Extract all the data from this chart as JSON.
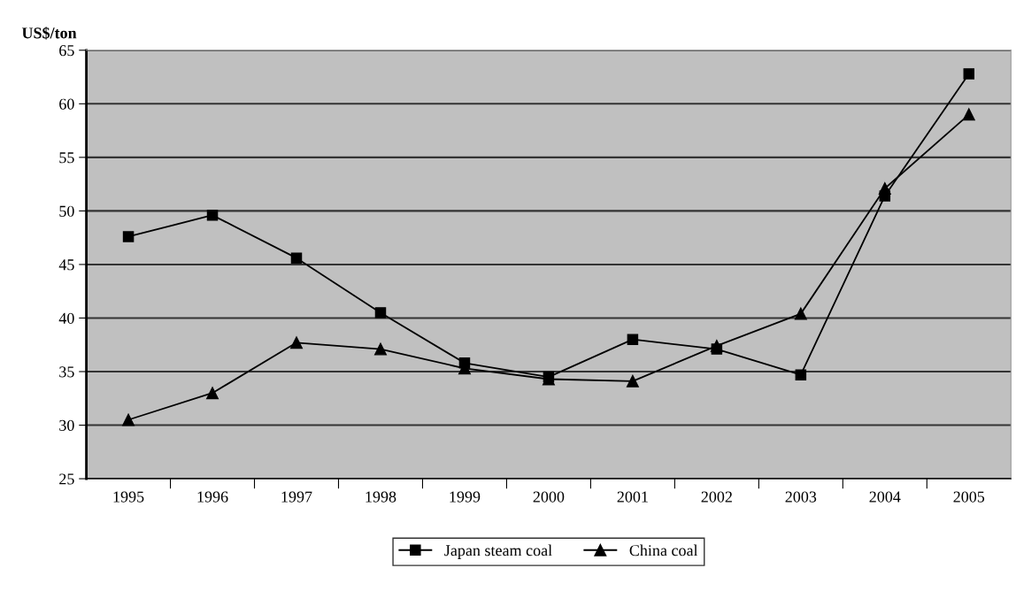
{
  "chart_data": {
    "type": "line",
    "ylabel": "US$/ton",
    "categories": [
      "1995",
      "1996",
      "1997",
      "1998",
      "1999",
      "2000",
      "2001",
      "2002",
      "2003",
      "2004",
      "2005"
    ],
    "series": [
      {
        "name": "Japan steam coal",
        "color": "#000000",
        "marker": "square",
        "values": [
          47.6,
          49.6,
          45.6,
          40.5,
          35.8,
          34.5,
          38.0,
          37.1,
          34.7,
          51.4,
          62.8
        ]
      },
      {
        "name": "China coal",
        "color": "#000000",
        "marker": "triangle",
        "values": [
          30.5,
          33.0,
          37.7,
          37.1,
          35.3,
          34.3,
          34.1,
          37.4,
          40.4,
          52.1,
          59.0
        ]
      }
    ],
    "ylim": [
      25,
      65
    ],
    "yticks": [
      25,
      30,
      35,
      40,
      45,
      50,
      55,
      60,
      65
    ],
    "grid": "y",
    "legend": "bottom",
    "line_style": "solid"
  }
}
